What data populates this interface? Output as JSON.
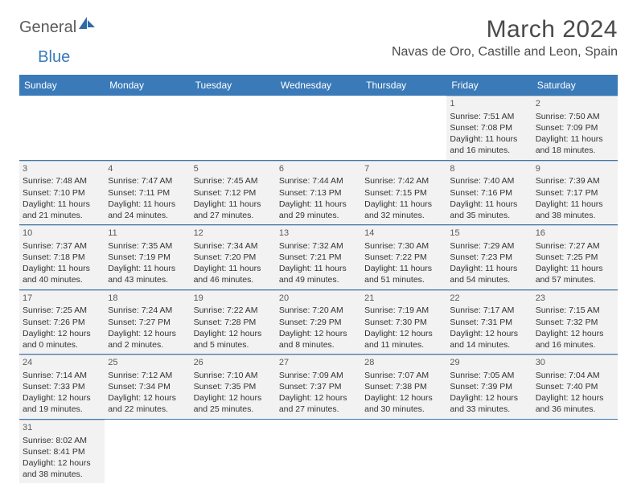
{
  "brand": {
    "part1": "General",
    "part2": "Blue"
  },
  "title": "March 2024",
  "location": "Navas de Oro, Castille and Leon, Spain",
  "colors": {
    "header_bg": "#3a7ab8",
    "cell_bg": "#f2f2f2",
    "border": "#c8c8c8",
    "text": "#333333"
  },
  "day_names": [
    "Sunday",
    "Monday",
    "Tuesday",
    "Wednesday",
    "Thursday",
    "Friday",
    "Saturday"
  ],
  "weeks": [
    [
      null,
      null,
      null,
      null,
      null,
      {
        "n": "1",
        "sr": "Sunrise: 7:51 AM",
        "ss": "Sunset: 7:08 PM",
        "d1": "Daylight: 11 hours",
        "d2": "and 16 minutes."
      },
      {
        "n": "2",
        "sr": "Sunrise: 7:50 AM",
        "ss": "Sunset: 7:09 PM",
        "d1": "Daylight: 11 hours",
        "d2": "and 18 minutes."
      }
    ],
    [
      {
        "n": "3",
        "sr": "Sunrise: 7:48 AM",
        "ss": "Sunset: 7:10 PM",
        "d1": "Daylight: 11 hours",
        "d2": "and 21 minutes."
      },
      {
        "n": "4",
        "sr": "Sunrise: 7:47 AM",
        "ss": "Sunset: 7:11 PM",
        "d1": "Daylight: 11 hours",
        "d2": "and 24 minutes."
      },
      {
        "n": "5",
        "sr": "Sunrise: 7:45 AM",
        "ss": "Sunset: 7:12 PM",
        "d1": "Daylight: 11 hours",
        "d2": "and 27 minutes."
      },
      {
        "n": "6",
        "sr": "Sunrise: 7:44 AM",
        "ss": "Sunset: 7:13 PM",
        "d1": "Daylight: 11 hours",
        "d2": "and 29 minutes."
      },
      {
        "n": "7",
        "sr": "Sunrise: 7:42 AM",
        "ss": "Sunset: 7:15 PM",
        "d1": "Daylight: 11 hours",
        "d2": "and 32 minutes."
      },
      {
        "n": "8",
        "sr": "Sunrise: 7:40 AM",
        "ss": "Sunset: 7:16 PM",
        "d1": "Daylight: 11 hours",
        "d2": "and 35 minutes."
      },
      {
        "n": "9",
        "sr": "Sunrise: 7:39 AM",
        "ss": "Sunset: 7:17 PM",
        "d1": "Daylight: 11 hours",
        "d2": "and 38 minutes."
      }
    ],
    [
      {
        "n": "10",
        "sr": "Sunrise: 7:37 AM",
        "ss": "Sunset: 7:18 PM",
        "d1": "Daylight: 11 hours",
        "d2": "and 40 minutes."
      },
      {
        "n": "11",
        "sr": "Sunrise: 7:35 AM",
        "ss": "Sunset: 7:19 PM",
        "d1": "Daylight: 11 hours",
        "d2": "and 43 minutes."
      },
      {
        "n": "12",
        "sr": "Sunrise: 7:34 AM",
        "ss": "Sunset: 7:20 PM",
        "d1": "Daylight: 11 hours",
        "d2": "and 46 minutes."
      },
      {
        "n": "13",
        "sr": "Sunrise: 7:32 AM",
        "ss": "Sunset: 7:21 PM",
        "d1": "Daylight: 11 hours",
        "d2": "and 49 minutes."
      },
      {
        "n": "14",
        "sr": "Sunrise: 7:30 AM",
        "ss": "Sunset: 7:22 PM",
        "d1": "Daylight: 11 hours",
        "d2": "and 51 minutes."
      },
      {
        "n": "15",
        "sr": "Sunrise: 7:29 AM",
        "ss": "Sunset: 7:23 PM",
        "d1": "Daylight: 11 hours",
        "d2": "and 54 minutes."
      },
      {
        "n": "16",
        "sr": "Sunrise: 7:27 AM",
        "ss": "Sunset: 7:25 PM",
        "d1": "Daylight: 11 hours",
        "d2": "and 57 minutes."
      }
    ],
    [
      {
        "n": "17",
        "sr": "Sunrise: 7:25 AM",
        "ss": "Sunset: 7:26 PM",
        "d1": "Daylight: 12 hours",
        "d2": "and 0 minutes."
      },
      {
        "n": "18",
        "sr": "Sunrise: 7:24 AM",
        "ss": "Sunset: 7:27 PM",
        "d1": "Daylight: 12 hours",
        "d2": "and 2 minutes."
      },
      {
        "n": "19",
        "sr": "Sunrise: 7:22 AM",
        "ss": "Sunset: 7:28 PM",
        "d1": "Daylight: 12 hours",
        "d2": "and 5 minutes."
      },
      {
        "n": "20",
        "sr": "Sunrise: 7:20 AM",
        "ss": "Sunset: 7:29 PM",
        "d1": "Daylight: 12 hours",
        "d2": "and 8 minutes."
      },
      {
        "n": "21",
        "sr": "Sunrise: 7:19 AM",
        "ss": "Sunset: 7:30 PM",
        "d1": "Daylight: 12 hours",
        "d2": "and 11 minutes."
      },
      {
        "n": "22",
        "sr": "Sunrise: 7:17 AM",
        "ss": "Sunset: 7:31 PM",
        "d1": "Daylight: 12 hours",
        "d2": "and 14 minutes."
      },
      {
        "n": "23",
        "sr": "Sunrise: 7:15 AM",
        "ss": "Sunset: 7:32 PM",
        "d1": "Daylight: 12 hours",
        "d2": "and 16 minutes."
      }
    ],
    [
      {
        "n": "24",
        "sr": "Sunrise: 7:14 AM",
        "ss": "Sunset: 7:33 PM",
        "d1": "Daylight: 12 hours",
        "d2": "and 19 minutes."
      },
      {
        "n": "25",
        "sr": "Sunrise: 7:12 AM",
        "ss": "Sunset: 7:34 PM",
        "d1": "Daylight: 12 hours",
        "d2": "and 22 minutes."
      },
      {
        "n": "26",
        "sr": "Sunrise: 7:10 AM",
        "ss": "Sunset: 7:35 PM",
        "d1": "Daylight: 12 hours",
        "d2": "and 25 minutes."
      },
      {
        "n": "27",
        "sr": "Sunrise: 7:09 AM",
        "ss": "Sunset: 7:37 PM",
        "d1": "Daylight: 12 hours",
        "d2": "and 27 minutes."
      },
      {
        "n": "28",
        "sr": "Sunrise: 7:07 AM",
        "ss": "Sunset: 7:38 PM",
        "d1": "Daylight: 12 hours",
        "d2": "and 30 minutes."
      },
      {
        "n": "29",
        "sr": "Sunrise: 7:05 AM",
        "ss": "Sunset: 7:39 PM",
        "d1": "Daylight: 12 hours",
        "d2": "and 33 minutes."
      },
      {
        "n": "30",
        "sr": "Sunrise: 7:04 AM",
        "ss": "Sunset: 7:40 PM",
        "d1": "Daylight: 12 hours",
        "d2": "and 36 minutes."
      }
    ],
    [
      {
        "n": "31",
        "sr": "Sunrise: 8:02 AM",
        "ss": "Sunset: 8:41 PM",
        "d1": "Daylight: 12 hours",
        "d2": "and 38 minutes."
      },
      null,
      null,
      null,
      null,
      null,
      null
    ]
  ]
}
